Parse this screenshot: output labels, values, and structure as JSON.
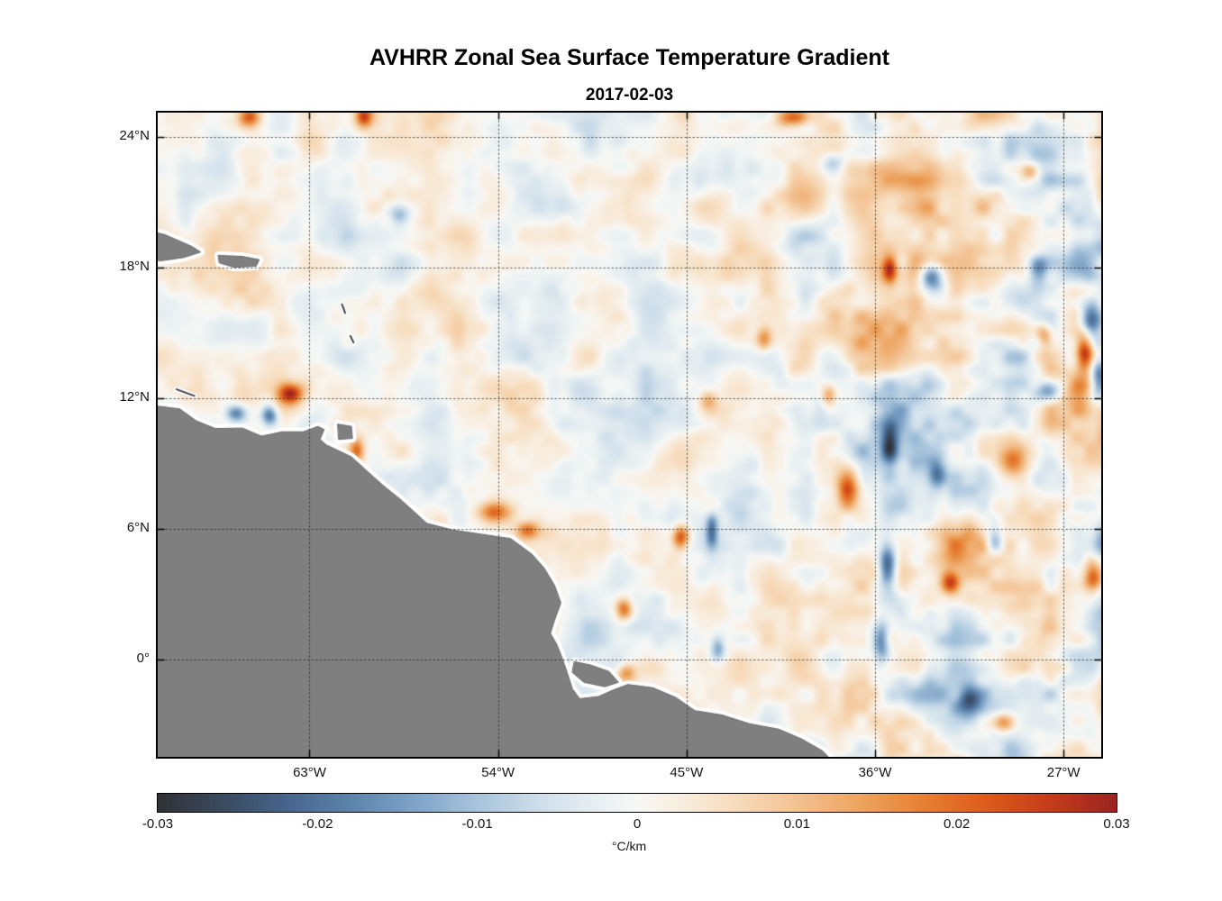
{
  "chart_data": {
    "type": "heatmap",
    "title": "AVHRR Zonal Sea Surface Temperature Gradient",
    "date": "2017-02-03",
    "units": "°C/km",
    "extent": {
      "lon_min": -70.25,
      "lon_max": -25.2,
      "lat_min": -4.47,
      "lat_max": 25.1
    },
    "x_ticks": [
      {
        "value": -63,
        "label": "63°W"
      },
      {
        "value": -54,
        "label": "54°W"
      },
      {
        "value": -45,
        "label": "45°W"
      },
      {
        "value": -36,
        "label": "36°W"
      },
      {
        "value": -27,
        "label": "27°W"
      }
    ],
    "y_ticks": [
      {
        "value": 24,
        "label": "24°N"
      },
      {
        "value": 18,
        "label": "18°N"
      },
      {
        "value": 12,
        "label": "12°N"
      },
      {
        "value": 6,
        "label": "6°N"
      },
      {
        "value": 0,
        "label": "0°"
      }
    ],
    "colorbar": {
      "min": -0.03,
      "max": 0.03,
      "label": "°C/km",
      "ticks": [
        {
          "value": -0.03,
          "label": "-0.03"
        },
        {
          "value": -0.02,
          "label": "-0.02"
        },
        {
          "value": -0.01,
          "label": "-0.01"
        },
        {
          "value": 0,
          "label": "0"
        },
        {
          "value": 0.01,
          "label": "0.01"
        },
        {
          "value": 0.02,
          "label": "0.02"
        },
        {
          "value": 0.03,
          "label": "0.03"
        }
      ],
      "stops": [
        [
          -0.03,
          "#2f3236"
        ],
        [
          -0.026,
          "#3a4a5f"
        ],
        [
          -0.022,
          "#46658b"
        ],
        [
          -0.018,
          "#5c83ab"
        ],
        [
          -0.014,
          "#7fa3c6"
        ],
        [
          -0.01,
          "#a7c4dc"
        ],
        [
          -0.006,
          "#cfdfeb"
        ],
        [
          -0.003,
          "#e4edf1"
        ],
        [
          -0.001,
          "#f0f5f4"
        ],
        [
          0.0,
          "#f7f8f6"
        ],
        [
          0.001,
          "#f9f4ed"
        ],
        [
          0.003,
          "#f8ecdc"
        ],
        [
          0.006,
          "#f7ddbe"
        ],
        [
          0.01,
          "#f3c292"
        ],
        [
          0.014,
          "#eda45f"
        ],
        [
          0.018,
          "#e67f33"
        ],
        [
          0.022,
          "#dc5a1b"
        ],
        [
          0.026,
          "#c33b1c"
        ],
        [
          0.03,
          "#9c2420"
        ]
      ]
    },
    "grid": {
      "style": "dotted",
      "color": "rgba(38,38,38,0.75)"
    },
    "land": {
      "color": "#7f7f7f",
      "outline": "#6b6b6b",
      "halo": "#ffffff",
      "mark_color": "#3a3f46",
      "polygons": {
        "south_america_mainland": [
          [
            -71.0,
            11.7
          ],
          [
            -70.0,
            11.6
          ],
          [
            -69.2,
            11.5
          ],
          [
            -68.4,
            10.95
          ],
          [
            -67.5,
            10.6
          ],
          [
            -66.2,
            10.62
          ],
          [
            -65.3,
            10.25
          ],
          [
            -64.3,
            10.45
          ],
          [
            -63.3,
            10.45
          ],
          [
            -62.6,
            10.7
          ],
          [
            -62.3,
            10.55
          ],
          [
            -62.5,
            10.1
          ],
          [
            -62.2,
            9.85
          ],
          [
            -61.0,
            9.3
          ],
          [
            -60.2,
            8.6
          ],
          [
            -59.5,
            8.0
          ],
          [
            -58.6,
            7.3
          ],
          [
            -57.4,
            6.25
          ],
          [
            -56.2,
            5.95
          ],
          [
            -54.8,
            5.75
          ],
          [
            -53.4,
            5.55
          ],
          [
            -52.4,
            4.85
          ],
          [
            -51.8,
            4.2
          ],
          [
            -51.3,
            3.4
          ],
          [
            -51.0,
            2.6
          ],
          [
            -51.3,
            1.8
          ],
          [
            -51.5,
            1.2
          ],
          [
            -51.2,
            0.7
          ],
          [
            -50.95,
            0.1
          ],
          [
            -50.7,
            -0.6
          ],
          [
            -50.45,
            -1.35
          ],
          [
            -50.1,
            -1.8
          ],
          [
            -49.2,
            -1.7
          ],
          [
            -48.5,
            -1.4
          ],
          [
            -47.8,
            -1.15
          ],
          [
            -46.6,
            -1.3
          ],
          [
            -45.5,
            -1.75
          ],
          [
            -44.6,
            -2.35
          ],
          [
            -43.3,
            -2.55
          ],
          [
            -42.0,
            -2.95
          ],
          [
            -40.6,
            -3.2
          ],
          [
            -39.5,
            -3.65
          ],
          [
            -38.5,
            -4.2
          ],
          [
            -37.9,
            -4.8
          ],
          [
            -37.3,
            -5.5
          ],
          [
            -71.0,
            -5.5
          ]
        ],
        "marajo_island": [
          [
            -50.35,
            -0.1
          ],
          [
            -49.6,
            -0.25
          ],
          [
            -48.7,
            -0.55
          ],
          [
            -48.25,
            -1.05
          ],
          [
            -48.9,
            -1.25
          ],
          [
            -49.9,
            -1.05
          ],
          [
            -50.45,
            -0.6
          ]
        ],
        "trinidad": [
          [
            -61.65,
            10.8
          ],
          [
            -61.0,
            10.7
          ],
          [
            -60.95,
            10.15
          ],
          [
            -61.6,
            10.1
          ]
        ],
        "hispaniola": [
          [
            -71.0,
            19.75
          ],
          [
            -69.9,
            19.5
          ],
          [
            -68.6,
            18.95
          ],
          [
            -68.2,
            18.7
          ],
          [
            -69.0,
            18.45
          ],
          [
            -70.1,
            18.3
          ],
          [
            -71.0,
            18.4
          ]
        ],
        "puerto_rico": [
          [
            -67.35,
            18.55
          ],
          [
            -66.2,
            18.5
          ],
          [
            -65.4,
            18.35
          ],
          [
            -65.55,
            18.05
          ],
          [
            -66.6,
            18.0
          ],
          [
            -67.3,
            18.2
          ]
        ]
      },
      "island_marks": [
        [
          -61.45,
          16.3,
          -61.3,
          15.9
        ],
        [
          -61.05,
          14.85,
          -60.9,
          14.55
        ],
        [
          -69.35,
          12.4,
          -68.5,
          12.1
        ]
      ]
    },
    "noise": {
      "seed": 11,
      "octaves": [
        {
          "cell": 80,
          "amp": 0.45
        },
        {
          "cell": 34,
          "amp": 0.38
        },
        {
          "cell": 15,
          "amp": 0.17
        }
      ],
      "scale": 0.0125,
      "bias": 0.0007,
      "east_boost": {
        "lon_start": -47,
        "lon_end": -28,
        "factor": 1.8
      }
    },
    "features": [
      [
        -65.9,
        24.9,
        0.022,
        0.55,
        0.45
      ],
      [
        -60.4,
        24.9,
        0.02,
        0.4,
        0.45
      ],
      [
        -39.9,
        24.9,
        0.024,
        0.85,
        0.45
      ],
      [
        -38.0,
        22.8,
        -0.013,
        0.55,
        0.5
      ],
      [
        -28.6,
        22.4,
        0.015,
        0.45,
        0.4
      ],
      [
        -58.7,
        20.4,
        -0.013,
        0.55,
        0.5
      ],
      [
        -35.3,
        17.9,
        0.021,
        0.35,
        0.6
      ],
      [
        -33.3,
        17.5,
        -0.028,
        0.6,
        0.75
      ],
      [
        -28.2,
        17.9,
        -0.014,
        0.5,
        0.6
      ],
      [
        -26.0,
        14.1,
        0.03,
        0.45,
        0.85
      ],
      [
        -25.3,
        12.9,
        -0.026,
        0.45,
        1.1
      ],
      [
        -25.7,
        15.6,
        -0.022,
        0.5,
        0.8
      ],
      [
        -27.7,
        12.4,
        -0.02,
        0.6,
        0.5
      ],
      [
        -27.9,
        14.9,
        0.016,
        0.4,
        0.5
      ],
      [
        -63.9,
        12.2,
        0.027,
        0.6,
        0.5
      ],
      [
        -66.5,
        11.3,
        -0.02,
        0.5,
        0.4
      ],
      [
        -64.9,
        11.15,
        -0.022,
        0.4,
        0.5
      ],
      [
        -60.75,
        9.6,
        0.018,
        0.35,
        0.55
      ],
      [
        -54.2,
        6.75,
        0.02,
        0.9,
        0.5
      ],
      [
        -52.6,
        5.95,
        0.015,
        0.5,
        0.4
      ],
      [
        -45.3,
        5.6,
        0.022,
        0.4,
        0.55
      ],
      [
        -43.8,
        5.9,
        -0.02,
        0.3,
        0.75
      ],
      [
        -37.3,
        7.9,
        0.024,
        0.55,
        0.95
      ],
      [
        -35.3,
        9.9,
        -0.022,
        0.4,
        0.95
      ],
      [
        -35.4,
        4.2,
        -0.028,
        0.45,
        1.1
      ],
      [
        -32.4,
        3.5,
        0.021,
        0.45,
        0.5
      ],
      [
        -25.6,
        3.8,
        0.022,
        0.45,
        0.65
      ],
      [
        -48.0,
        2.3,
        0.02,
        0.4,
        0.5
      ],
      [
        -35.7,
        0.8,
        -0.02,
        0.4,
        0.95
      ],
      [
        -31.5,
        -2.0,
        -0.018,
        0.5,
        0.65
      ],
      [
        -29.8,
        -2.9,
        0.016,
        0.5,
        0.45
      ],
      [
        -41.3,
        14.7,
        0.014,
        0.4,
        0.5
      ],
      [
        -44.0,
        11.9,
        0.013,
        0.5,
        0.45
      ],
      [
        -38.2,
        12.1,
        0.016,
        0.4,
        0.45
      ],
      [
        -29.5,
        9.0,
        0.014,
        0.5,
        0.6
      ],
      [
        -30.3,
        5.5,
        -0.016,
        0.4,
        0.7
      ],
      [
        -33.0,
        8.5,
        -0.015,
        0.4,
        0.7
      ],
      [
        -47.9,
        -0.6,
        0.015,
        0.45,
        0.4
      ],
      [
        -43.5,
        0.5,
        -0.014,
        0.35,
        0.6
      ],
      [
        -52.0,
        1.5,
        0.013,
        0.4,
        0.45
      ]
    ]
  }
}
